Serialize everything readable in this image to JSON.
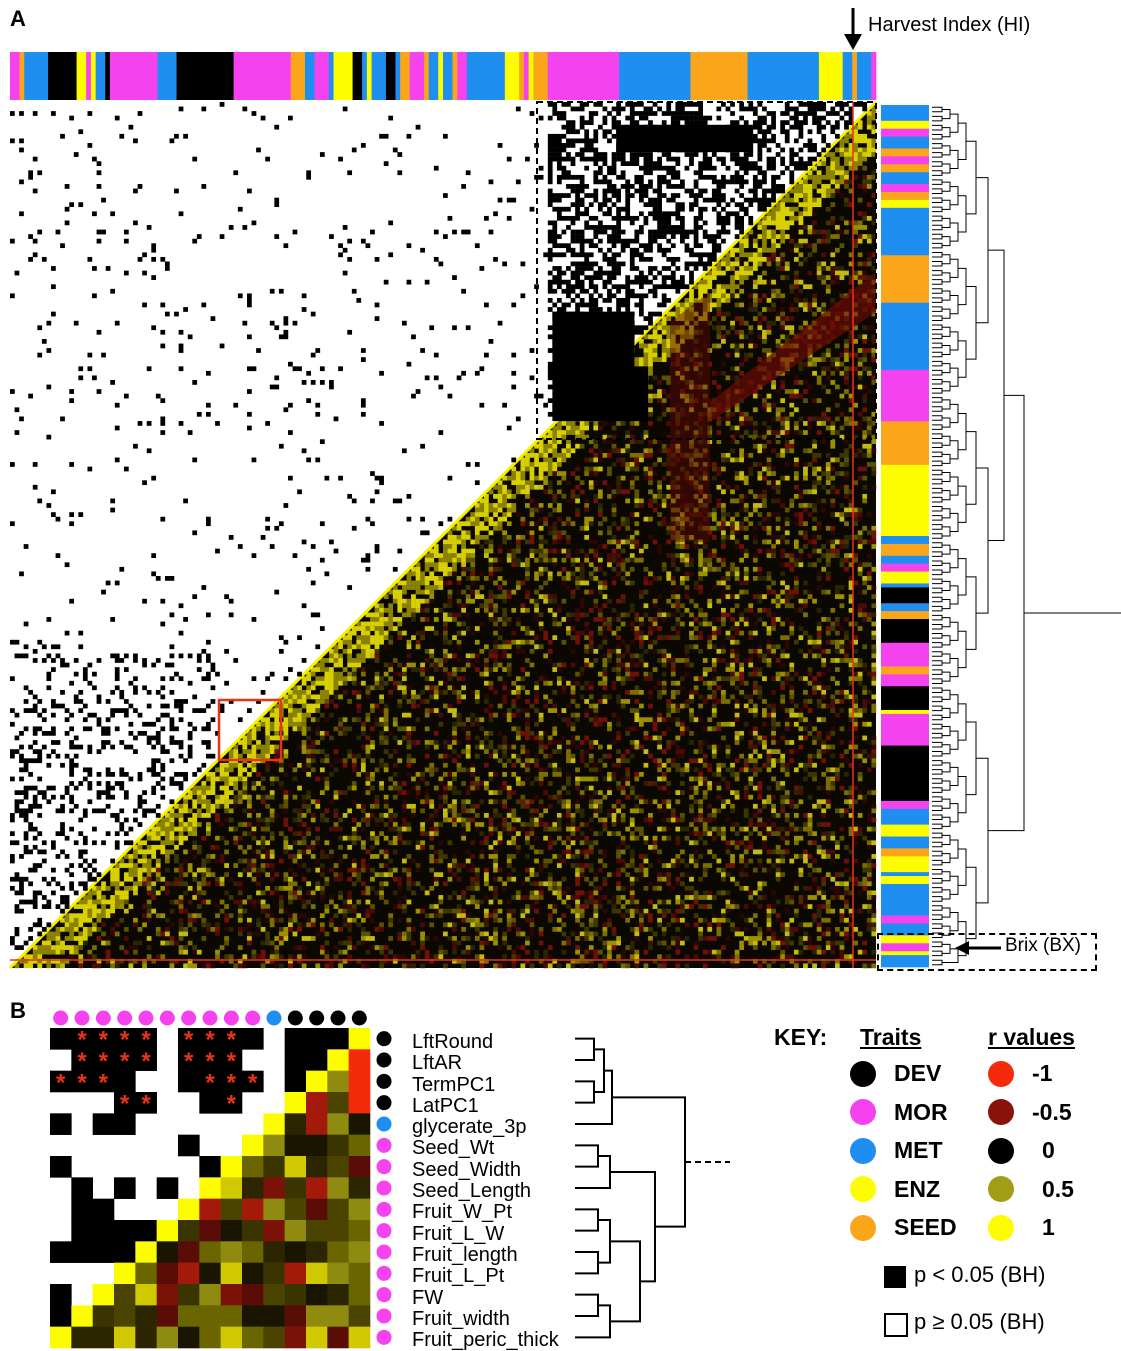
{
  "panels": {
    "a_label": "A",
    "b_label": "B"
  },
  "annotations": {
    "harvest_index": "Harvest Index (HI)",
    "brix": "Brix (BX)"
  },
  "colors": {
    "DEV": "#000000",
    "MOR": "#f542ef",
    "MET": "#1e8ef0",
    "ENZ": "#fdfd00",
    "SEED": "#fba51b",
    "r_neg1": "#f52a0a",
    "r_neg05": "#8a1309",
    "r_0": "#000000",
    "r_05": "#a39d16",
    "r_1": "#fdfd00",
    "highlight": "#e8331a"
  },
  "top_bar_categories": [
    "MOR",
    "SEED",
    "MET",
    "DEV",
    "ENZ",
    "MOR",
    "ENZ",
    "MET",
    "DEV",
    "MOR",
    "MET",
    "DEV",
    "MOR",
    "SEED",
    "MET",
    "MOR",
    "MET",
    "ENZ",
    "DEV",
    "MET",
    "ENZ",
    "MET",
    "DEV",
    "MET",
    "SEED",
    "MOR",
    "SEED",
    "MET",
    "ENZ",
    "MET",
    "SEED",
    "MOR",
    "MET",
    "ENZ",
    "SEED",
    "MOR",
    "ENZ",
    "SEED",
    "MOR",
    "MET",
    "SEED",
    "MET",
    "ENZ",
    "MET",
    "SEED",
    "MET",
    "MOR"
  ],
  "top_bar_widths": [
    2,
    1,
    5,
    6,
    2,
    1,
    1,
    2,
    1,
    10,
    4,
    12,
    12,
    3,
    2,
    3,
    1,
    4,
    2,
    1,
    1,
    3,
    2,
    1,
    2,
    3,
    1,
    2,
    1,
    2,
    1,
    2,
    8,
    3,
    1,
    1,
    1,
    3,
    15,
    15,
    12,
    15,
    5,
    2,
    1,
    3,
    1
  ],
  "side_bar_categories": [
    "MET",
    "ENZ",
    "MOR",
    "MET",
    "SEED",
    "MOR",
    "SEED",
    "MET",
    "MOR",
    "SEED",
    "ENZ",
    "MET",
    "SEED",
    "MET",
    "MOR",
    "SEED",
    "ENZ",
    "MET",
    "SEED",
    "MET",
    "MOR",
    "ENZ",
    "MET",
    "DEV",
    "MET",
    "SEED",
    "DEV",
    "MOR",
    "SEED",
    "MOR",
    "DEV",
    "ENZ",
    "MOR",
    "DEV",
    "MOR",
    "MET",
    "ENZ",
    "MET",
    "SEED",
    "ENZ",
    "MET",
    "ENZ",
    "MET",
    "MOR",
    "MET",
    "ENZ",
    "MOR",
    "ENZ",
    "MET"
  ],
  "side_bar_heights": [
    4,
    2,
    2,
    3,
    2,
    2,
    2,
    3,
    2,
    2,
    2,
    12,
    12,
    17,
    13,
    11,
    18,
    2,
    3,
    2,
    2,
    3,
    1,
    4,
    2,
    2,
    6,
    6,
    2,
    3,
    6,
    1,
    8,
    14,
    2,
    4,
    3,
    3,
    2,
    4,
    1,
    2,
    8,
    2,
    3,
    2,
    2,
    1,
    3
  ],
  "traits": {
    "rows": [
      "LftRound",
      "LftAR",
      "TermPC1",
      "LatPC1",
      "glycerate_3p",
      "Seed_Wt",
      "Seed_Width",
      "Seed_Length",
      "Fruit_W_Pt",
      "Fruit_L_W",
      "Fruit_length",
      "Fruit_L_Pt",
      "FW",
      "Fruit_width",
      "Fruit_peric_thick"
    ],
    "row_categories": [
      "DEV",
      "DEV",
      "DEV",
      "DEV",
      "MET",
      "MOR",
      "MOR",
      "MOR",
      "MOR",
      "MOR",
      "MOR",
      "MOR",
      "MOR",
      "MOR",
      "MOR"
    ],
    "column_categories": [
      "MOR",
      "MOR",
      "MOR",
      "MOR",
      "MOR",
      "MOR",
      "MOR",
      "MOR",
      "MOR",
      "MOR",
      "MET",
      "DEV",
      "DEV",
      "DEV",
      "DEV"
    ],
    "significance_marker": "*"
  },
  "key": {
    "title": "KEY:",
    "traits_header": "Traits",
    "r_header": "r values",
    "traits": [
      "DEV",
      "MOR",
      "MET",
      "ENZ",
      "SEED"
    ],
    "r_values": [
      "-1",
      "-0.5",
      "0",
      "0.5",
      "1"
    ],
    "sig_filled": "p < 0.05 (BH)",
    "sig_open": "p ≥ 0.05 (BH)"
  }
}
